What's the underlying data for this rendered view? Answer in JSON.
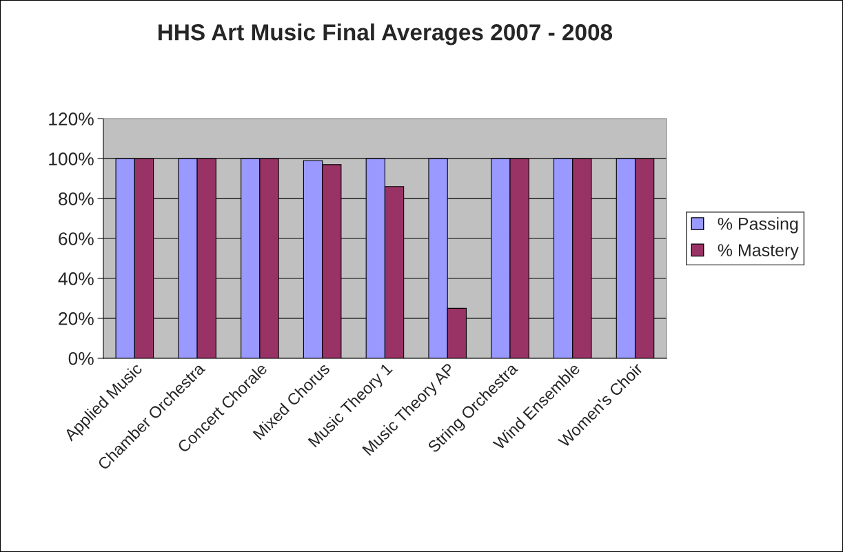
{
  "chart_data": {
    "type": "bar",
    "title": "HHS Art Music Final Averages 2007 - 2008",
    "categories": [
      "Applied Music",
      "Chamber Orchestra",
      "Concert Chorale",
      "Mixed Chorus",
      "Music Theory 1",
      "Music Theory AP",
      "String Orchestra",
      "Wind Ensemble",
      "Women's Choir"
    ],
    "series": [
      {
        "name": "% Passing",
        "color": "#9999ff",
        "values": [
          100,
          100,
          100,
          99,
          100,
          100,
          100,
          100,
          100
        ]
      },
      {
        "name": "% Mastery",
        "color": "#993366",
        "values": [
          100,
          100,
          100,
          97,
          86,
          25,
          100,
          100,
          100
        ]
      }
    ],
    "ylim": [
      0,
      120
    ],
    "yticks": [
      {
        "value": 0,
        "label": "0%"
      },
      {
        "value": 20,
        "label": "20%"
      },
      {
        "value": 40,
        "label": "40%"
      },
      {
        "value": 60,
        "label": "60%"
      },
      {
        "value": 80,
        "label": "80%"
      },
      {
        "value": 100,
        "label": "100%"
      },
      {
        "value": 120,
        "label": "120%"
      }
    ],
    "grid": "y",
    "legend": "right"
  }
}
